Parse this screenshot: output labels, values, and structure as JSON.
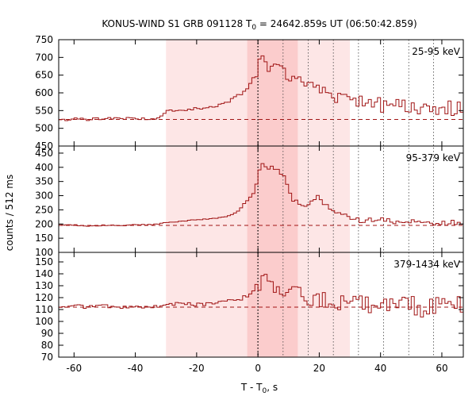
{
  "chart_data": {
    "type": "line",
    "title": {
      "prefix": "KONUS-WIND S1 GRB 091128 T",
      "sub": "0",
      "suffix": " = 24642.859s UT (06:50:42.859)"
    },
    "xlabel": {
      "prefix": "T - T",
      "sub": "0",
      "suffix": ", s"
    },
    "ylabel": "counts / 512 ms",
    "xlim": [
      -65,
      67
    ],
    "xticks": [
      -60,
      -40,
      -20,
      0,
      20,
      40,
      60
    ],
    "highlight_regions": [
      {
        "x": [
          -30,
          30
        ],
        "color": "#fde6e6"
      },
      {
        "x": [
          -3.5,
          13
        ],
        "color": "#fbcccc"
      }
    ],
    "vlines_dotted": [
      0,
      8.2,
      16.4,
      24.6,
      32.8,
      41.0,
      49.2,
      57.3
    ],
    "series_color": "#a01414",
    "panels": [
      {
        "label": "25-95 keV",
        "ylim": [
          450,
          750
        ],
        "yticks": [
          450,
          500,
          550,
          600,
          650,
          700,
          750
        ],
        "background": 525,
        "profile": [
          [
            -65,
            525
          ],
          [
            -62,
            523
          ],
          [
            -59,
            527
          ],
          [
            -56,
            524
          ],
          [
            -53,
            528
          ],
          [
            -50,
            526
          ],
          [
            -47,
            529
          ],
          [
            -44,
            527
          ],
          [
            -41,
            530
          ],
          [
            -38,
            527
          ],
          [
            -35,
            528
          ],
          [
            -32,
            530
          ],
          [
            -30,
            548
          ],
          [
            -25,
            552
          ],
          [
            -20,
            556
          ],
          [
            -15,
            560
          ],
          [
            -10,
            572
          ],
          [
            -7,
            590
          ],
          [
            -5,
            600
          ],
          [
            -3,
            615
          ],
          [
            -2,
            640
          ],
          [
            -1,
            650
          ],
          [
            0,
            675
          ],
          [
            1,
            700
          ],
          [
            2,
            680
          ],
          [
            3,
            665
          ],
          [
            4,
            670
          ],
          [
            5,
            672
          ],
          [
            6,
            668
          ],
          [
            7,
            666
          ],
          [
            8,
            660
          ],
          [
            9,
            655
          ],
          [
            10,
            652
          ],
          [
            12,
            645
          ],
          [
            14,
            630
          ],
          [
            16,
            618
          ],
          [
            18,
            612
          ],
          [
            20,
            605
          ],
          [
            22,
            598
          ],
          [
            24,
            592
          ],
          [
            26,
            587
          ],
          [
            28,
            582
          ],
          [
            30,
            578
          ],
          [
            33,
            572
          ],
          [
            36,
            568
          ],
          [
            40,
            565
          ],
          [
            44,
            562
          ],
          [
            48,
            560
          ],
          [
            52,
            558
          ],
          [
            56,
            556
          ],
          [
            60,
            556
          ],
          [
            64,
            555
          ],
          [
            67,
            556
          ]
        ],
        "noise": 22
      },
      {
        "label": "95-379 keV",
        "ylim": [
          100,
          475
        ],
        "yticks": [
          100,
          150,
          200,
          250,
          300,
          350,
          400,
          450
        ],
        "background": 195,
        "profile": [
          [
            -65,
            198
          ],
          [
            -60,
            196
          ],
          [
            -55,
            193
          ],
          [
            -50,
            196
          ],
          [
            -45,
            194
          ],
          [
            -40,
            197
          ],
          [
            -35,
            197
          ],
          [
            -30,
            205
          ],
          [
            -25,
            210
          ],
          [
            -20,
            215
          ],
          [
            -15,
            218
          ],
          [
            -10,
            226
          ],
          [
            -7,
            240
          ],
          [
            -5,
            265
          ],
          [
            -3,
            290
          ],
          [
            -1,
            310
          ],
          [
            0,
            370
          ],
          [
            1,
            420
          ],
          [
            2,
            410
          ],
          [
            3,
            395
          ],
          [
            4,
            405
          ],
          [
            5,
            400
          ],
          [
            6,
            395
          ],
          [
            7,
            390
          ],
          [
            8,
            380
          ],
          [
            9,
            350
          ],
          [
            10,
            320
          ],
          [
            11,
            300
          ],
          [
            12,
            280
          ],
          [
            14,
            265
          ],
          [
            16,
            260
          ],
          [
            18,
            280
          ],
          [
            20,
            300
          ],
          [
            22,
            270
          ],
          [
            24,
            245
          ],
          [
            26,
            240
          ],
          [
            28,
            230
          ],
          [
            30,
            220
          ],
          [
            34,
            215
          ],
          [
            40,
            210
          ],
          [
            46,
            208
          ],
          [
            52,
            205
          ],
          [
            58,
            203
          ],
          [
            64,
            203
          ],
          [
            67,
            202
          ]
        ],
        "noise": 12
      },
      {
        "label": "379-1434 keV",
        "ylim": [
          70,
          158
        ],
        "yticks": [
          70,
          80,
          90,
          100,
          110,
          120,
          130,
          140,
          150
        ],
        "background": 112,
        "profile": [
          [
            -65,
            112
          ],
          [
            -60,
            113
          ],
          [
            -55,
            112
          ],
          [
            -50,
            113
          ],
          [
            -45,
            112
          ],
          [
            -40,
            113
          ],
          [
            -35,
            112
          ],
          [
            -30,
            114
          ],
          [
            -25,
            115
          ],
          [
            -20,
            114
          ],
          [
            -15,
            115
          ],
          [
            -10,
            117
          ],
          [
            -6,
            118
          ],
          [
            -4,
            121
          ],
          [
            -2,
            124
          ],
          [
            0,
            131
          ],
          [
            2,
            136
          ],
          [
            4,
            133
          ],
          [
            6,
            130
          ],
          [
            8,
            128
          ],
          [
            10,
            126
          ],
          [
            12,
            123
          ],
          [
            14,
            121
          ],
          [
            16,
            119
          ],
          [
            18,
            118
          ],
          [
            20,
            119
          ],
          [
            22,
            117
          ],
          [
            24,
            118
          ],
          [
            26,
            117
          ],
          [
            28,
            116
          ],
          [
            32,
            112
          ],
          [
            36,
            114
          ],
          [
            40,
            114
          ],
          [
            44,
            114
          ],
          [
            48,
            113
          ],
          [
            52,
            113
          ],
          [
            56,
            112
          ],
          [
            60,
            114
          ],
          [
            64,
            113
          ],
          [
            67,
            113
          ]
        ],
        "noise": 9
      }
    ]
  }
}
